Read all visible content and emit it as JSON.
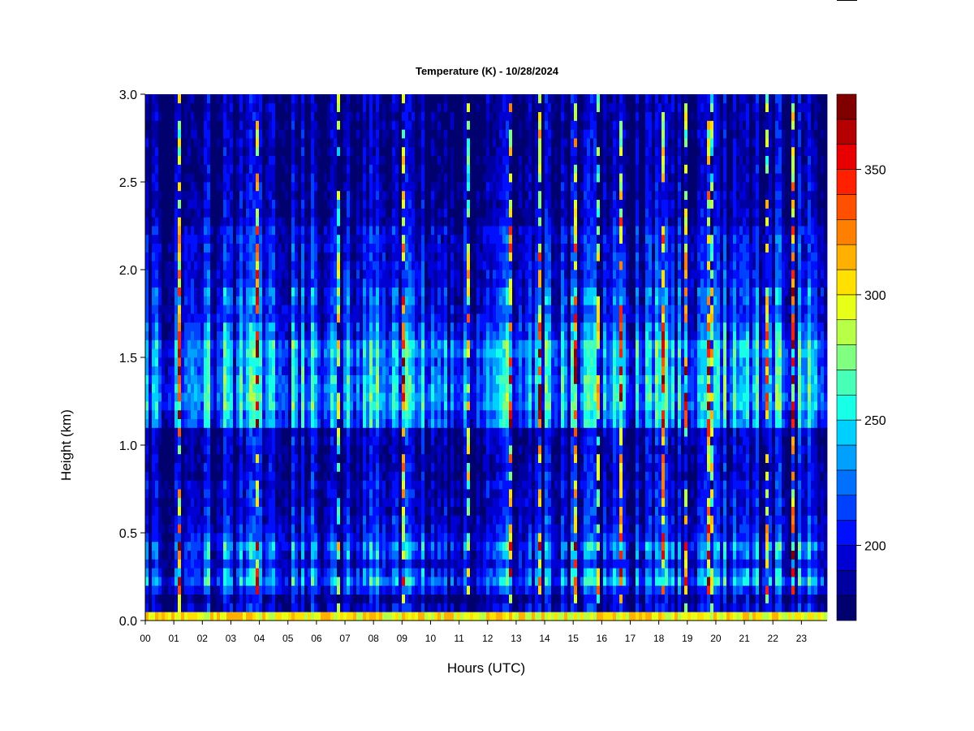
{
  "chart_data": {
    "type": "heatmap",
    "title": "Temperature (K) - 10/28/2024",
    "xlabel": "Hours (UTC)",
    "ylabel": "Height (km)",
    "xlim": [
      0,
      23.9
    ],
    "ylim": [
      0,
      3.0
    ],
    "x_ticks": [
      "00",
      "01",
      "02",
      "03",
      "04",
      "05",
      "06",
      "07",
      "08",
      "09",
      "10",
      "11",
      "12",
      "13",
      "14",
      "15",
      "16",
      "17",
      "18",
      "19",
      "20",
      "21",
      "22",
      "23"
    ],
    "y_ticks": [
      "0.0",
      "0.5",
      "1.0",
      "1.5",
      "2.0",
      "2.5",
      "3.0"
    ],
    "colorbar": {
      "range": [
        170,
        380
      ],
      "step": 10,
      "ticks": [
        "200",
        "250",
        "300",
        "350"
      ],
      "colors": [
        "#00006e",
        "#0000a0",
        "#0000d2",
        "#0010ff",
        "#0040ff",
        "#0070ff",
        "#00a0ff",
        "#00d0ff",
        "#18ffe8",
        "#48ffb8",
        "#80ff80",
        "#b8ff48",
        "#e8ff18",
        "#ffe000",
        "#ffb000",
        "#ff8000",
        "#ff5000",
        "#ff2000",
        "#e80000",
        "#b40000",
        "#800000"
      ]
    },
    "height_profile": {
      "heights_km": [
        0.0,
        0.05,
        0.1,
        0.15,
        0.2,
        0.25,
        0.3,
        0.35,
        0.4,
        0.45,
        0.5,
        0.6,
        0.8,
        1.0,
        1.1,
        1.2,
        1.3,
        1.4,
        1.5,
        1.6,
        1.7,
        1.8,
        1.9,
        2.0,
        2.25,
        2.5,
        3.0
      ],
      "typical_K": [
        295,
        195,
        185,
        205,
        228,
        215,
        200,
        212,
        222,
        205,
        198,
        194,
        188,
        190,
        225,
        238,
        235,
        228,
        236,
        215,
        205,
        208,
        200,
        198,
        186,
        182,
        180
      ]
    },
    "grid": false,
    "legend": "colorbar-right"
  }
}
